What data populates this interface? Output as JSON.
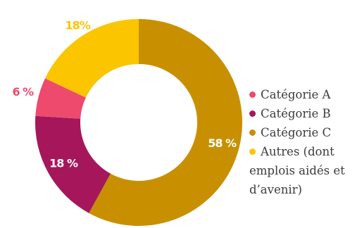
{
  "chart_data": {
    "type": "pie",
    "donut": true,
    "slices": [
      {
        "name": "Catégorie C",
        "value": 58,
        "label": "58 %",
        "color": "#c89000",
        "label_color": "#ffffff"
      },
      {
        "name": "Catégorie B",
        "value": 18,
        "label": "18 %",
        "color": "#a5175a",
        "label_color": "#ffffff"
      },
      {
        "name": "Catégorie A",
        "value": 6,
        "label": "6 %",
        "color": "#ee4a6e",
        "label_color": "#ee4a6e"
      },
      {
        "name": "Autres (dont emplois aidés et d’avenir)",
        "value": 18,
        "label": "18%",
        "color": "#fbc500",
        "label_color": "#fbc500"
      }
    ],
    "legend_position": "right",
    "legend": [
      "Catégorie A",
      "Catégorie B",
      "Catégorie C",
      "Autres (dont emplois aidés et d’avenir)"
    ]
  }
}
